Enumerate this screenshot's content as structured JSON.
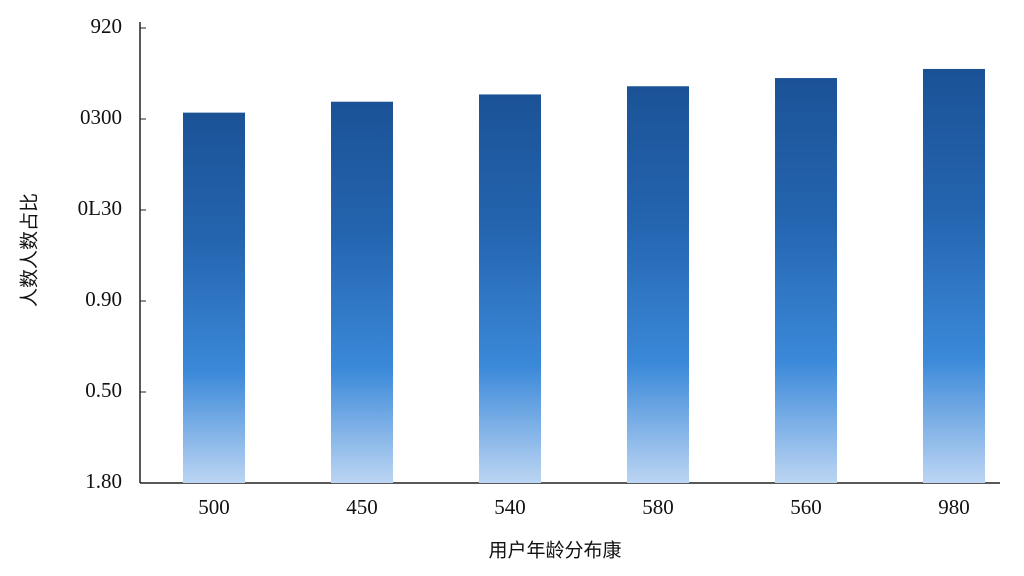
{
  "chart_data": {
    "type": "bar",
    "x_label": "用户年龄分布康",
    "y_label": "人数人数占比",
    "categories": [
      "500",
      "450",
      "540",
      "580",
      "560",
      "980"
    ],
    "values": [
      4.07,
      4.19,
      4.27,
      4.36,
      4.45,
      4.55
    ],
    "color": "#1b5296",
    "ylim": [
      0,
      5
    ],
    "yticks": [
      {
        "value": 0,
        "label": "1.80"
      },
      {
        "value": 1,
        "label": "0.50"
      },
      {
        "value": 2,
        "label": "0.90"
      },
      {
        "value": 3,
        "label": "0L30"
      },
      {
        "value": 4,
        "label": "0300"
      },
      {
        "value": 5,
        "label": "920"
      }
    ],
    "grid": false
  }
}
